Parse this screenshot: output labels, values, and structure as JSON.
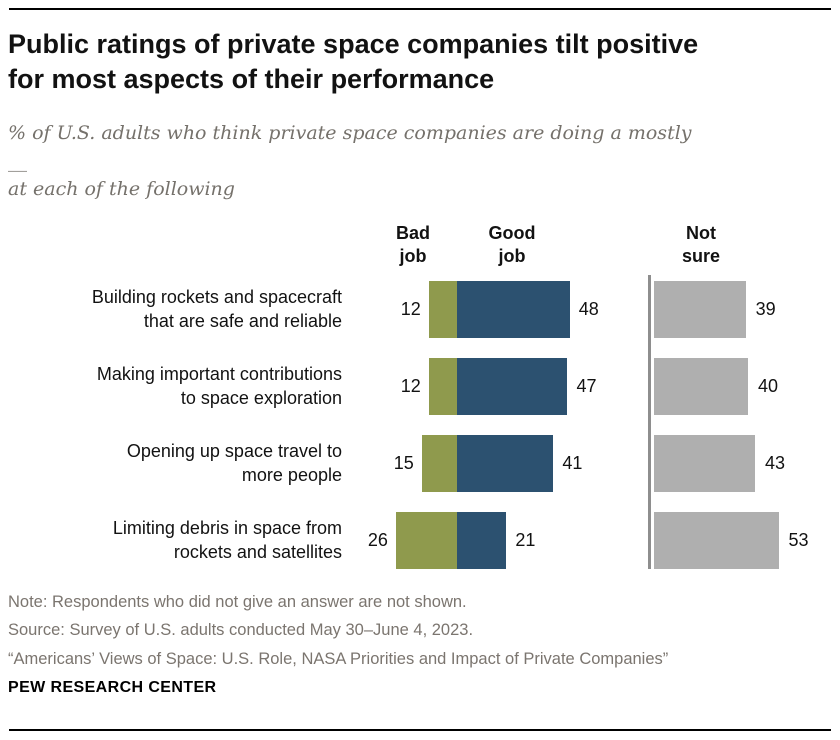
{
  "header": {
    "title": "Public ratings of private space companies tilt positive\nfor most aspects of their performance",
    "subtitle": "% of U.S. adults who think private space companies are doing a mostly __\nat each of the following"
  },
  "chart_data": {
    "type": "bar",
    "variant": "diverging-horizontal",
    "unit": "%",
    "value_labels_shown": true,
    "axes_hidden": true,
    "categories": [
      "Building rockets and spacecraft\nthat are safe and reliable",
      "Making important contributions\nto space exploration",
      "Opening up space travel to\nmore people",
      "Limiting debris in space from\nrockets and satellites"
    ],
    "series": [
      {
        "name": "Bad job",
        "values": [
          12,
          12,
          15,
          26
        ],
        "color": "#8f9a4d"
      },
      {
        "name": "Good job",
        "values": [
          48,
          47,
          41,
          21
        ],
        "color": "#2c5170"
      },
      {
        "name": "Not sure",
        "values": [
          39,
          40,
          43,
          53
        ],
        "color": "#afafaf"
      }
    ]
  },
  "notes": {
    "note": "Note: Respondents who did not give an answer are not shown.",
    "source": "Source: Survey of U.S. adults conducted May 30–June 4, 2023.",
    "report": "“Americans’ Views of Space: U.S. Role, NASA Priorities and Impact of Private Companies”"
  },
  "footer": {
    "brand": "PEW RESEARCH CENTER"
  }
}
